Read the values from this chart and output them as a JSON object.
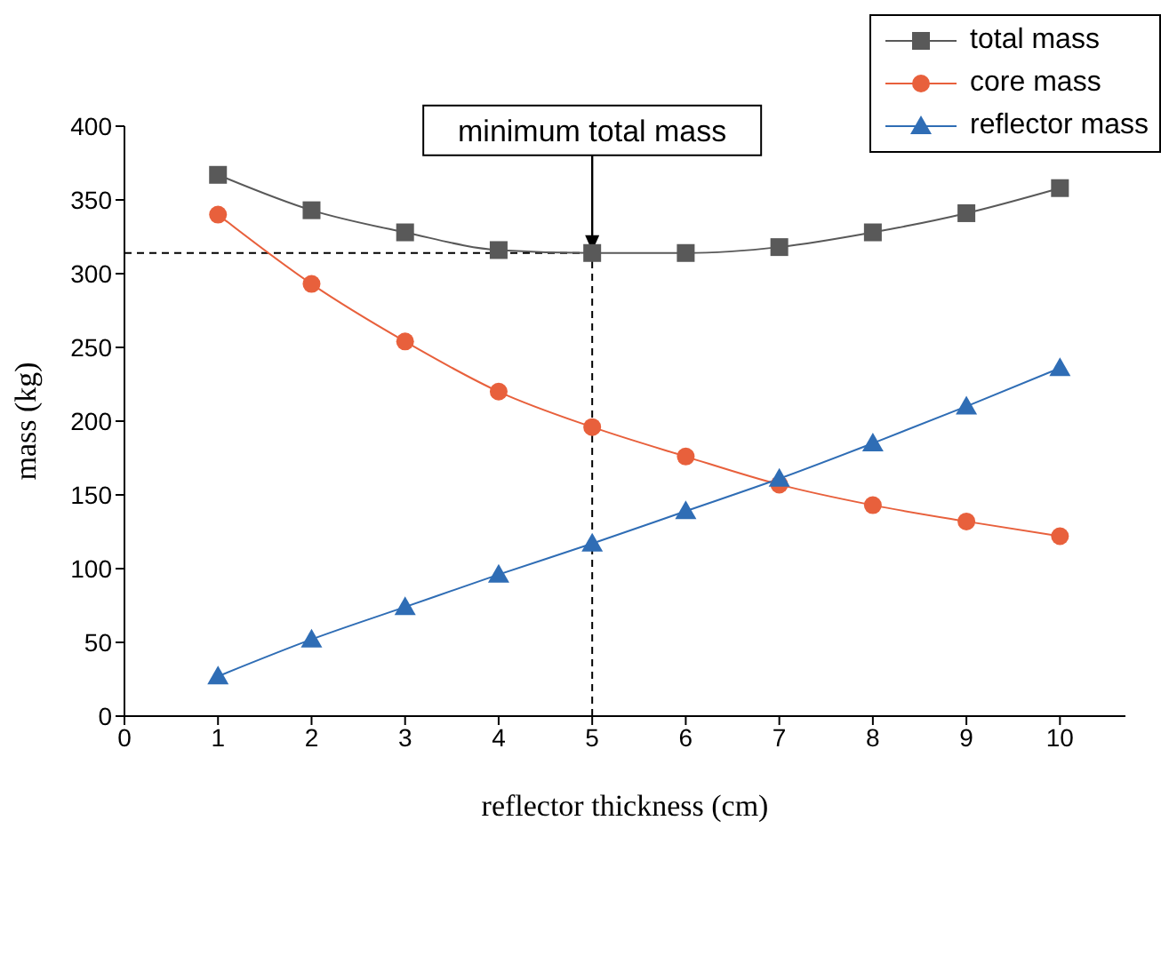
{
  "chart_data": {
    "type": "line",
    "xlabel": "reflector thickness (cm)",
    "ylabel": "mass (kg)",
    "x": [
      1,
      2,
      3,
      4,
      5,
      6,
      7,
      8,
      9,
      10
    ],
    "series": [
      {
        "name": "total mass",
        "color": "#595959",
        "marker": "square",
        "values": [
          367,
          343,
          328,
          316,
          314,
          314,
          318,
          328,
          341,
          358
        ]
      },
      {
        "name": "core mass",
        "color": "#e8603c",
        "marker": "circle",
        "values": [
          340,
          293,
          254,
          220,
          196,
          176,
          157,
          143,
          132,
          122
        ]
      },
      {
        "name": "reflector mass",
        "color": "#2f6db5",
        "marker": "triangle",
        "values": [
          27,
          52,
          74,
          96,
          117,
          139,
          161,
          185,
          210,
          236
        ]
      }
    ],
    "xlim": [
      0,
      10.7
    ],
    "xticks": [
      0,
      1,
      2,
      3,
      4,
      5,
      6,
      7,
      8,
      9,
      10
    ],
    "ylim": [
      0,
      400
    ],
    "yticks": [
      0,
      50,
      100,
      150,
      200,
      250,
      300,
      350,
      400
    ],
    "ref_lines": [
      {
        "axis": "y",
        "value": 314,
        "line_style": "dashed",
        "color": "#000000"
      },
      {
        "axis": "x",
        "value": 5,
        "line_style": "dashed",
        "color": "#000000"
      }
    ],
    "annotations": [
      "minimum total mass"
    ],
    "legend": "top right",
    "line_style": "solid"
  }
}
